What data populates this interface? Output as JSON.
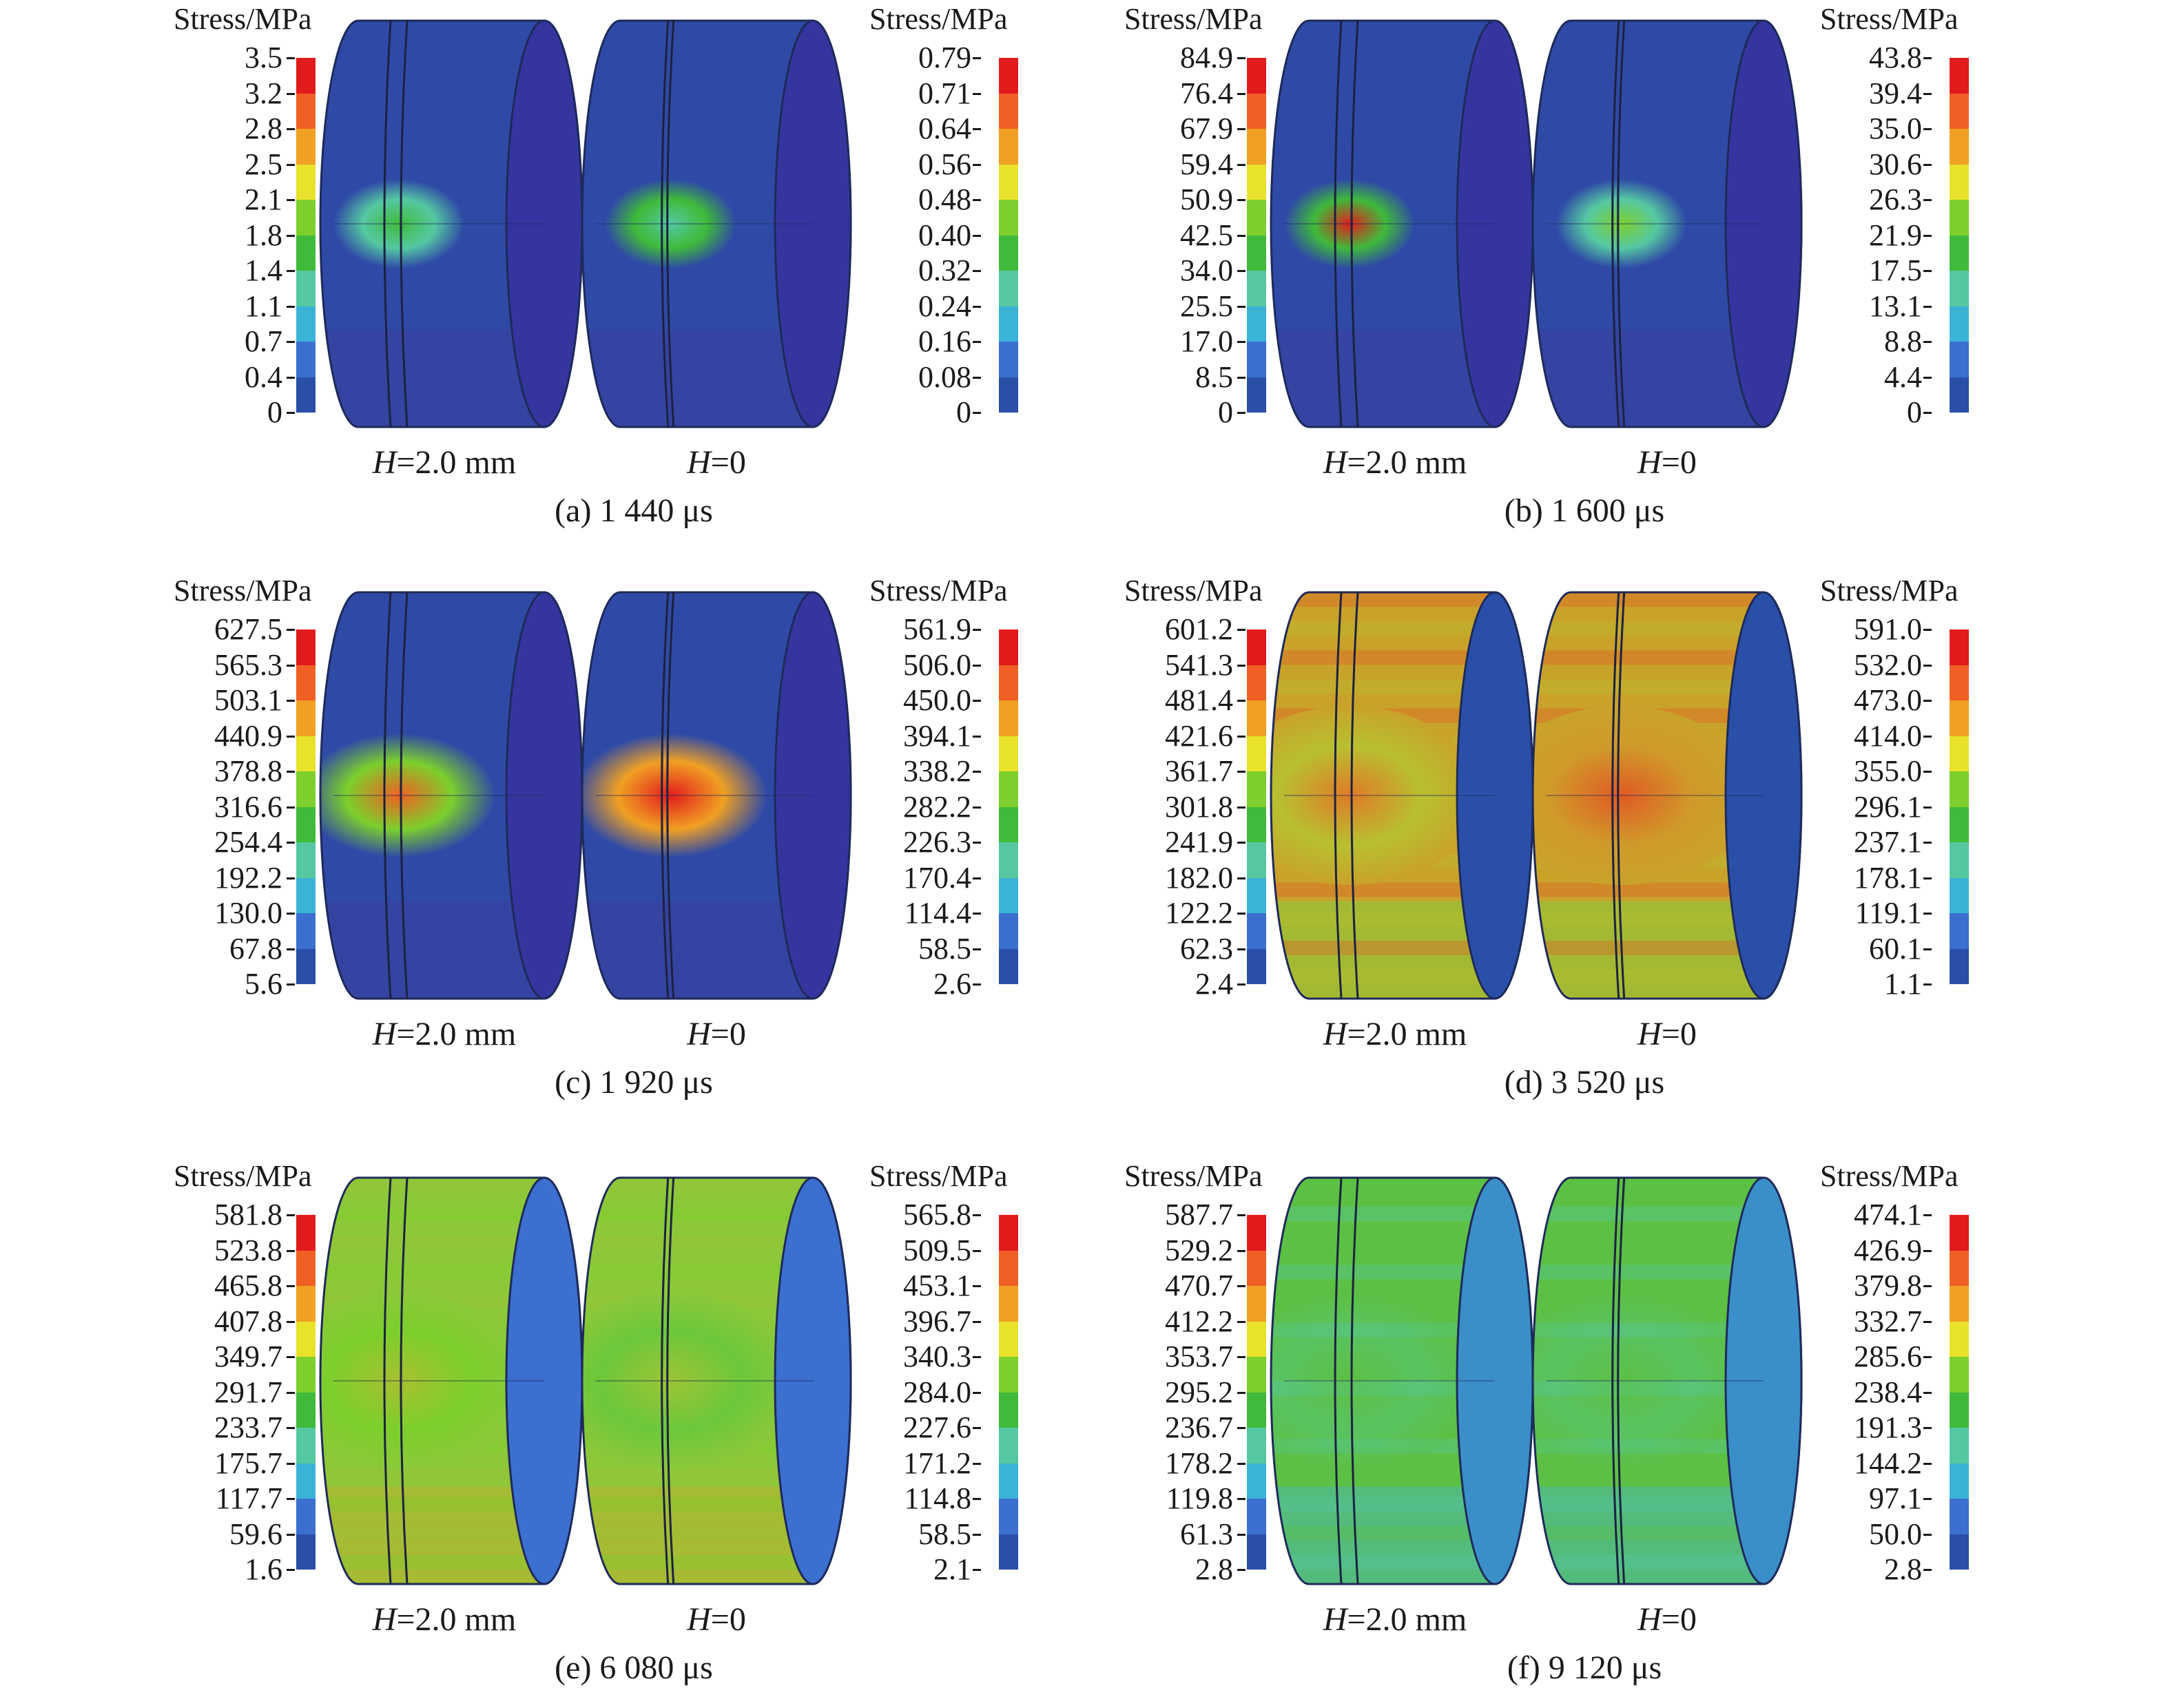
{
  "colorbar_colors": [
    "#2a4fa8",
    "#3b6fd0",
    "#3bb3d6",
    "#55c8a2",
    "#3fba3a",
    "#7ccf2c",
    "#e8e22a",
    "#f0a023",
    "#f06024",
    "#e21c1c"
  ],
  "stress_title": "Stress/MPa",
  "label_thick": "=2.0 mm",
  "label_zero": "=0",
  "H": "H",
  "panels": [
    {
      "caption": "(a) 1 440 μs",
      "left_ticks": [
        "3.5",
        "3.2",
        "2.8",
        "2.5",
        "2.1",
        "1.8",
        "1.4",
        "1.1",
        "0.7",
        "0.4",
        "0"
      ],
      "right_ticks": [
        "0.79",
        "0.71",
        "0.64",
        "0.56",
        "0.48",
        "0.40",
        "0.32",
        "0.24",
        "0.16",
        "0.08",
        "0"
      ],
      "body_color": "#2f4aa6",
      "band_color": "#3b3fa0",
      "hot": [
        "#3fba3a",
        "#55c8a2"
      ],
      "hot2": [
        "#55c8a2",
        "#3fba3a"
      ],
      "mode": "spot"
    },
    {
      "caption": "(b) 1 600 μs",
      "left_ticks": [
        "84.9",
        "76.4",
        "67.9",
        "59.4",
        "50.9",
        "42.5",
        "34.0",
        "25.5",
        "17.0",
        "8.5",
        "0"
      ],
      "right_ticks": [
        "43.8",
        "39.4",
        "35.0",
        "30.6",
        "26.3",
        "21.9",
        "17.5",
        "13.1",
        "8.8",
        "4.4",
        "0"
      ],
      "body_color": "#2f4aa6",
      "band_color": "#3b3fa0",
      "hot": [
        "#e21c1c",
        "#3fba3a"
      ],
      "hot2": [
        "#7ccf2c",
        "#55c8a2"
      ],
      "mode": "spot"
    },
    {
      "caption": "(c) 1 920 μs",
      "left_ticks": [
        "627.5",
        "565.3",
        "503.1",
        "440.9",
        "378.8",
        "316.6",
        "254.4",
        "192.2",
        "130.0",
        "67.8",
        "5.6"
      ],
      "right_ticks": [
        "561.9",
        "506.0",
        "450.0",
        "394.1",
        "338.2",
        "282.2",
        "226.3",
        "170.4",
        "114.4",
        "58.5",
        "2.6"
      ],
      "body_color": "#2f4aa6",
      "band_color": "#3b3fa0",
      "hot": [
        "#f06024",
        "#7ccf2c"
      ],
      "hot2": [
        "#e21c1c",
        "#f0a023"
      ],
      "mode": "bigspot"
    },
    {
      "caption": "(d) 3 520 μs",
      "left_ticks": [
        "601.2",
        "541.3",
        "481.4",
        "421.6",
        "361.7",
        "301.8",
        "241.9",
        "182.0",
        "122.2",
        "62.3",
        "2.4"
      ],
      "right_ticks": [
        "591.0",
        "532.0",
        "473.0",
        "414.0",
        "355.0",
        "296.1",
        "237.1",
        "178.1",
        "119.1",
        "60.1",
        "1.1"
      ],
      "body_color": "#c9a22a",
      "band_color": "#8cc83a",
      "hot": [
        "#e07a28",
        "#b8c030"
      ],
      "hot2": [
        "#e05a24",
        "#d09a2a"
      ],
      "mode": "hot"
    },
    {
      "caption": "(e) 6 080 μs",
      "left_ticks": [
        "581.8",
        "523.8",
        "465.8",
        "407.8",
        "349.7",
        "291.7",
        "233.7",
        "175.7",
        "117.7",
        "59.6",
        "1.6"
      ],
      "right_ticks": [
        "565.8",
        "509.5",
        "453.1",
        "396.7",
        "340.3",
        "284.0",
        "227.6",
        "171.2",
        "114.8",
        "58.5",
        "2.1"
      ],
      "body_color": "#8cc83a",
      "band_color": "#b8b030",
      "hot": [
        "#a8c030",
        "#7ccf2c"
      ],
      "hot2": [
        "#9cc436",
        "#6cc83a"
      ],
      "mode": "warm"
    },
    {
      "caption": "(f) 9 120 μs",
      "left_ticks": [
        "587.7",
        "529.2",
        "470.7",
        "412.2",
        "353.7",
        "295.2",
        "236.7",
        "178.2",
        "119.8",
        "61.3",
        "2.8"
      ],
      "right_ticks": [
        "474.1",
        "426.9",
        "379.8",
        "332.7",
        "285.6",
        "238.4",
        "191.3",
        "144.2",
        "97.1",
        "50.0",
        "2.8"
      ],
      "body_color": "#5cc044",
      "band_color": "#4cb8a0",
      "hot": [
        "#5cc044",
        "#55c8a2"
      ],
      "hot2": [
        "#5cc044",
        "#55c8a2"
      ],
      "mode": "cool"
    }
  ]
}
